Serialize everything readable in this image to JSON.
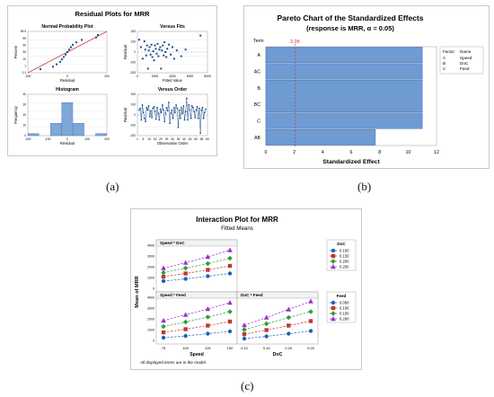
{
  "figure": {
    "captions": [
      "(a)",
      "(b)",
      "(c)"
    ]
  },
  "chart_data": [
    {
      "type": "scatter",
      "title": "Residual Plots for MRR",
      "subplots": [
        {
          "type": "scatter",
          "title": "Normal Probability Plot",
          "xlabel": "Residual",
          "ylabel": "Percent",
          "x_ticks": [
            "-200",
            "0",
            "200"
          ],
          "y_ticks": [
            "99.9",
            "99",
            "90",
            "50",
            "10",
            "1",
            "0.1"
          ],
          "x": [
            -150,
            -80,
            -60,
            -40,
            -30,
            -20,
            -10,
            0,
            10,
            20,
            30,
            50,
            80,
            160,
            170
          ],
          "y": [
            0.1,
            5,
            10,
            20,
            30,
            40,
            50,
            55,
            60,
            65,
            70,
            80,
            90,
            97,
            99
          ]
        },
        {
          "type": "scatter",
          "title": "Versus Fits",
          "xlabel": "Fitted Value",
          "ylabel": "Residual",
          "x_ticks": [
            "0",
            "2000",
            "4000",
            "6000",
            "8000"
          ],
          "y_ticks": [
            "200",
            "100",
            "0",
            "-100",
            "-200"
          ],
          "xlim": [
            0,
            8000
          ],
          "ylim": [
            -250,
            250
          ],
          "x": [
            200,
            400,
            600,
            800,
            900,
            1000,
            1100,
            1200,
            1300,
            1400,
            1500,
            1600,
            1700,
            1800,
            1900,
            2000,
            2100,
            2200,
            2300,
            2400,
            2500,
            2600,
            2700,
            2800,
            2900,
            3000,
            3100,
            3200,
            3300,
            3400,
            3600,
            3800,
            4000,
            4200,
            4500,
            5000,
            5500,
            7200
          ],
          "y": [
            150,
            60,
            -80,
            130,
            30,
            -40,
            80,
            -200,
            20,
            60,
            -30,
            90,
            -60,
            10,
            -100,
            80,
            40,
            -20,
            100,
            -50,
            30,
            60,
            -200,
            20,
            80,
            -40,
            120,
            0,
            -60,
            40,
            90,
            -30,
            60,
            -80,
            20,
            -50,
            30,
            200
          ]
        },
        {
          "type": "bar",
          "title": "Histogram",
          "xlabel": "Residual",
          "ylabel": "Frequency",
          "x_ticks": [
            "-200",
            "-100",
            "0",
            "100",
            "200"
          ],
          "y_ticks": [
            "40",
            "30",
            "20",
            "10",
            "0"
          ],
          "bins": [
            -200,
            -100,
            -50,
            0,
            50,
            100,
            200
          ],
          "values": [
            2,
            0,
            12,
            32,
            12,
            0,
            2
          ],
          "ylim": [
            0,
            40
          ]
        },
        {
          "type": "line",
          "title": "Versus Order",
          "xlabel": "Observation Order",
          "ylabel": "Residual",
          "x_ticks": [
            "1",
            "5",
            "10",
            "15",
            "20",
            "25",
            "30",
            "35",
            "40",
            "45",
            "50",
            "55",
            "60"
          ],
          "y_ticks": [
            "200",
            "100",
            "0",
            "-100",
            "-200"
          ],
          "ylim": [
            -250,
            250
          ],
          "y": [
            60,
            80,
            -60,
            120,
            30,
            -40,
            -80,
            90,
            60,
            110,
            -20,
            50,
            -30,
            80,
            100,
            40,
            -50,
            90,
            20,
            -60,
            70,
            30,
            120,
            60,
            -80,
            20,
            90,
            50,
            150,
            -100,
            20,
            60,
            -40,
            90,
            30,
            120,
            80,
            -150,
            60,
            -40,
            90,
            20,
            110,
            -60,
            40,
            200,
            -60,
            120,
            60,
            -40,
            110,
            90,
            40,
            -30,
            60,
            100,
            -40,
            80,
            -220,
            60,
            90,
            -40,
            30,
            70
          ]
        }
      ]
    },
    {
      "type": "bar",
      "orientation": "horizontal",
      "title": "Pareto Chart of the Standardized Effects",
      "subtitle": "(response is MRR, α = 0.05)",
      "xlabel": "Standardized Effect",
      "ylabel": "Term",
      "categories": [
        "A",
        "AC",
        "B",
        "BC",
        "C",
        "AB"
      ],
      "values": [
        11,
        11,
        11,
        11,
        11,
        7.7
      ],
      "reference_line": 2.05,
      "reference_label": "2.05",
      "x_ticks": [
        "0",
        "2",
        "4",
        "6",
        "8",
        "10",
        "12"
      ],
      "xlim": [
        0,
        12
      ],
      "legend": {
        "placement": "right",
        "headers": [
          "Factor",
          "Name"
        ],
        "rows": [
          [
            "A",
            "Speed"
          ],
          [
            "B",
            "DoC"
          ],
          [
            "C",
            "Feed"
          ]
        ]
      }
    },
    {
      "type": "line",
      "title": "Interaction Plot for MRR",
      "subtitle": "Fitted Means",
      "ylabel": "Mean of MRR",
      "y_ticks": [
        "4000",
        "3000",
        "2000",
        "1000",
        "0"
      ],
      "ylim": [
        0,
        4800
      ],
      "footnote": "All displayed terms are in the model.",
      "panels": [
        {
          "title": "Speed * DoC",
          "x": [
            75,
            100,
            125,
            150
          ],
          "series": [
            {
              "name": "0.100",
              "values": [
                1000,
                1250,
                1550,
                1850
              ],
              "color": "#1f5fbf",
              "marker": "circle"
            },
            {
              "name": "0.150",
              "values": [
                1500,
                1850,
                2250,
                2700
              ],
              "color": "#c0392b",
              "marker": "square"
            },
            {
              "name": "0.200",
              "values": [
                1950,
                2450,
                2950,
                3550
              ],
              "color": "#2e9e3a",
              "marker": "diamond"
            },
            {
              "name": "0.250",
              "values": [
                2450,
                3050,
                3700,
                4450
              ],
              "color": "#9b2fc8",
              "marker": "triangle"
            }
          ]
        },
        {
          "title": "Speed * Feed",
          "xlabel": "Speed",
          "x_ticks": [
            "75",
            "100",
            "125",
            "150"
          ],
          "x": [
            75,
            100,
            125,
            150
          ],
          "series": [
            {
              "name": "0.050",
              "values": [
                500,
                700,
                950,
                1200
              ],
              "color": "#1f5fbf",
              "marker": "circle"
            },
            {
              "name": "0.100",
              "values": [
                1100,
                1450,
                1850,
                2300
              ],
              "color": "#c0392b",
              "marker": "square"
            },
            {
              "name": "0.150",
              "values": [
                1750,
                2250,
                2800,
                3400
              ],
              "color": "#2e9e3a",
              "marker": "diamond"
            },
            {
              "name": "0.200",
              "values": [
                2400,
                3050,
                3700,
                4400
              ],
              "color": "#9b2fc8",
              "marker": "triangle"
            }
          ]
        },
        {
          "title": "DoC * Feed",
          "xlabel": "DoC",
          "x_ticks": [
            "0.10",
            "0.15",
            "0.20",
            "0.25"
          ],
          "x": [
            0.1,
            0.15,
            0.2,
            0.25
          ],
          "series": [
            {
              "name": "0.050",
              "values": [
                400,
                650,
                950,
                1250
              ],
              "color": "#1f5fbf",
              "marker": "circle"
            },
            {
              "name": "0.100",
              "values": [
                900,
                1350,
                1850,
                2350
              ],
              "color": "#c0392b",
              "marker": "square"
            },
            {
              "name": "0.150",
              "values": [
                1400,
                2050,
                2750,
                3400
              ],
              "color": "#2e9e3a",
              "marker": "diamond"
            },
            {
              "name": "0.200",
              "values": [
                1900,
                2750,
                3650,
                4550
              ],
              "color": "#9b2fc8",
              "marker": "triangle"
            }
          ]
        }
      ],
      "legends": [
        {
          "title": "DoC",
          "entries": [
            "0.100",
            "0.150",
            "0.200",
            "0.250"
          ]
        },
        {
          "title": "Feed",
          "entries": [
            "0.050",
            "0.100",
            "0.150",
            "0.200"
          ]
        }
      ]
    }
  ]
}
